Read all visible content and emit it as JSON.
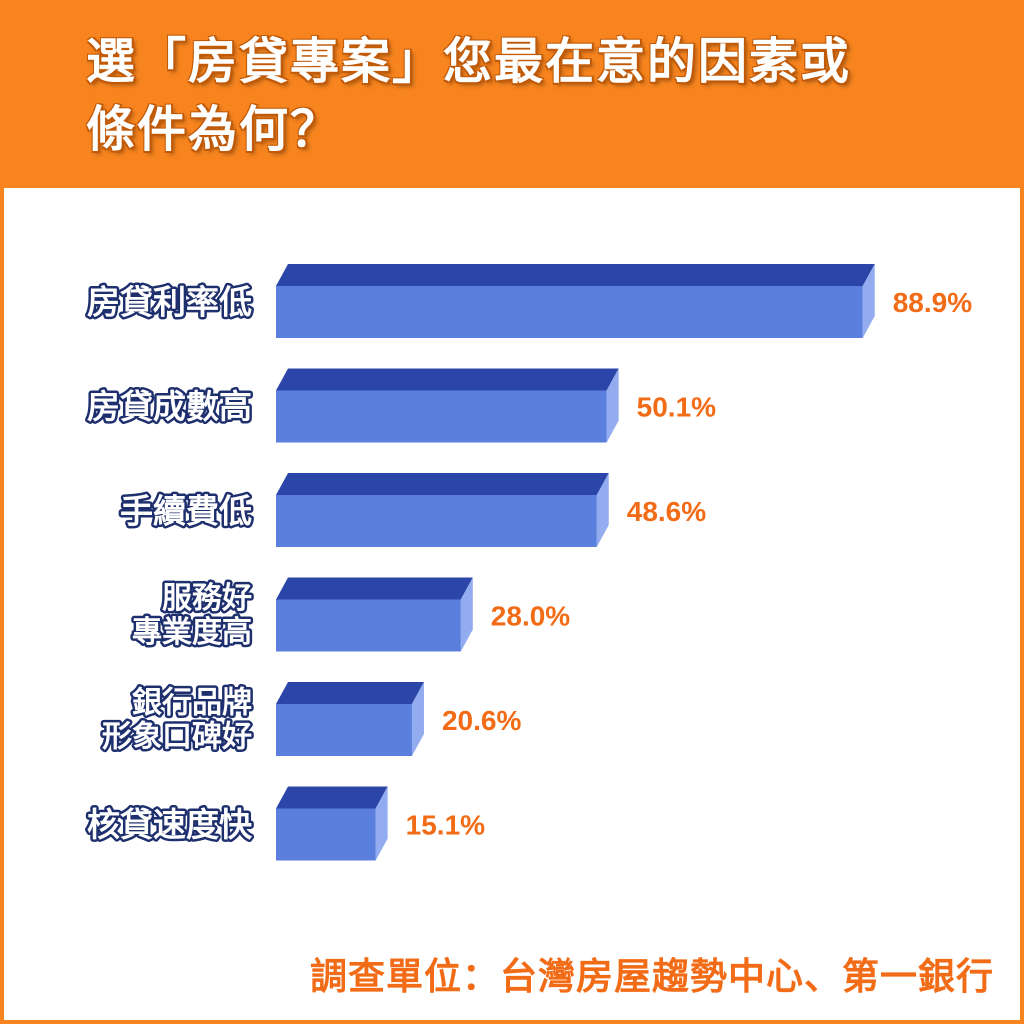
{
  "title_lines": [
    "選「房貸專案」您最在意的因素或",
    "條件為何？"
  ],
  "source": "調查單位：台灣房屋趨勢中心、第一銀行",
  "colors": {
    "background": "#f7841e",
    "bar_front": "#5a7fdc",
    "bar_top": "#2c45a8",
    "bar_side": "#93acf0",
    "label_outline": "#1e2f6e",
    "value_text": "#f26b16"
  },
  "chart_data": {
    "type": "bar",
    "orientation": "horizontal",
    "categories": [
      [
        "房貸利率低"
      ],
      [
        "房貸成數高"
      ],
      [
        "手續費低"
      ],
      [
        "服務好",
        "專業度高"
      ],
      [
        "銀行品牌",
        "形象口碑好"
      ],
      [
        "核貸速度快"
      ]
    ],
    "values": [
      88.9,
      50.1,
      48.6,
      28.0,
      20.6,
      15.1
    ],
    "value_labels": [
      "88.9%",
      "50.1%",
      "48.6%",
      "28.0%",
      "20.6%",
      "15.1%"
    ],
    "unit": "%",
    "grid": false,
    "legend": "none"
  }
}
